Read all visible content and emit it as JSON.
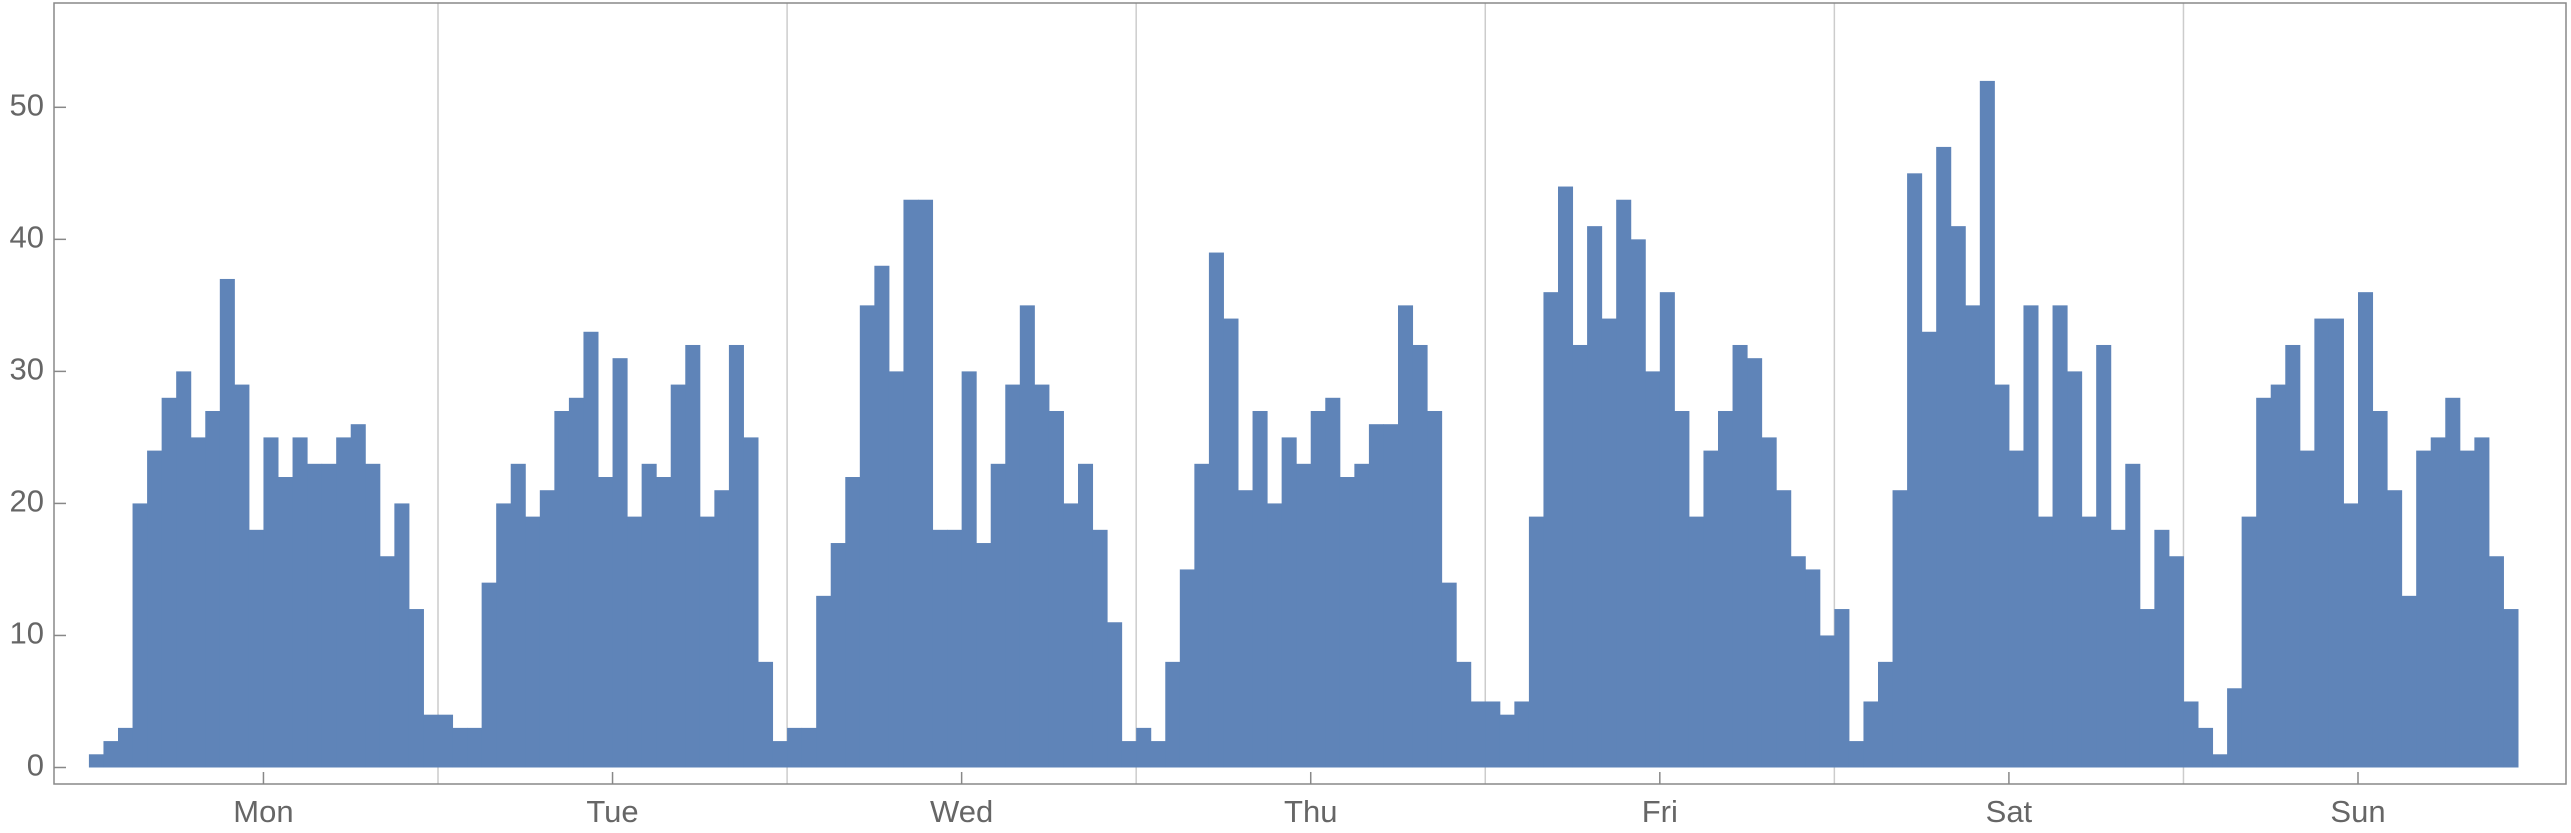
{
  "chart_data": {
    "type": "histogram",
    "bins": [
      0,
      1,
      2,
      3,
      4,
      5,
      6,
      7,
      8,
      9,
      10,
      11,
      12,
      13,
      14,
      15,
      16,
      17,
      18,
      19,
      20,
      21,
      22,
      23,
      24,
      25,
      26,
      27,
      28,
      29,
      30,
      31,
      32,
      33,
      34,
      35,
      36,
      37,
      38,
      39,
      40,
      41,
      42,
      43,
      44,
      45,
      46,
      47,
      48,
      49,
      50,
      51,
      52,
      53,
      54,
      55,
      56,
      57,
      58,
      59,
      60,
      61,
      62,
      63,
      64,
      65,
      66,
      67,
      68,
      69,
      70,
      71,
      72,
      73,
      74,
      75,
      76,
      77,
      78,
      79,
      80,
      81,
      82,
      83,
      84,
      85,
      86,
      87,
      88,
      89,
      90,
      91,
      92,
      93,
      94,
      95,
      96,
      97,
      98,
      99,
      100,
      101,
      102,
      103,
      104,
      105,
      106,
      107,
      108,
      109,
      110,
      111,
      112,
      113,
      114,
      115,
      116,
      117,
      118,
      119,
      120,
      121,
      122,
      123,
      124,
      125,
      126,
      127,
      128,
      129,
      130,
      131,
      132,
      133,
      134,
      135,
      136,
      137,
      138,
      139,
      140,
      141,
      142,
      143,
      144,
      145,
      146,
      147,
      148,
      149,
      150,
      151,
      152,
      153,
      154,
      155,
      156,
      157,
      158,
      159,
      160,
      161,
      162,
      163,
      164,
      165,
      166,
      167
    ],
    "counts": [
      1,
      2,
      3,
      20,
      24,
      28,
      30,
      25,
      27,
      37,
      29,
      18,
      25,
      22,
      25,
      23,
      23,
      25,
      26,
      23,
      16,
      20,
      12,
      4,
      4,
      3,
      3,
      14,
      20,
      23,
      19,
      21,
      27,
      28,
      33,
      22,
      31,
      19,
      23,
      22,
      29,
      32,
      19,
      21,
      32,
      25,
      8,
      2,
      3,
      3,
      13,
      17,
      22,
      35,
      38,
      30,
      43,
      43,
      18,
      18,
      30,
      17,
      23,
      29,
      35,
      29,
      27,
      20,
      23,
      18,
      11,
      2,
      3,
      2,
      8,
      15,
      23,
      39,
      34,
      21,
      27,
      20,
      25,
      23,
      27,
      28,
      22,
      23,
      26,
      26,
      35,
      32,
      27,
      14,
      8,
      5,
      5,
      4,
      5,
      19,
      36,
      44,
      32,
      41,
      34,
      43,
      40,
      30,
      36,
      27,
      19,
      24,
      27,
      32,
      31,
      25,
      21,
      16,
      15,
      10,
      12,
      2,
      5,
      8,
      21,
      45,
      33,
      47,
      41,
      35,
      52,
      29,
      24,
      35,
      19,
      35,
      30,
      19,
      32,
      18,
      23,
      12,
      18,
      16,
      5,
      3,
      1,
      6,
      19,
      28,
      29,
      32,
      24,
      34,
      34,
      20,
      36,
      27,
      21,
      13,
      24,
      25,
      28,
      24,
      25,
      16,
      12
    ],
    "color": "#5f84b8",
    "xlim": [
      -2.4,
      170.3
    ],
    "xticks": [
      {
        "value": 12,
        "label": "Mon"
      },
      {
        "value": 36,
        "label": "Tue"
      },
      {
        "value": 60,
        "label": "Wed"
      },
      {
        "value": 84,
        "label": "Thu"
      },
      {
        "value": 108,
        "label": "Fri"
      },
      {
        "value": 132,
        "label": "Sat"
      },
      {
        "value": 156,
        "label": "Sun"
      }
    ],
    "xgrid": [
      24,
      48,
      72,
      96,
      120,
      144
    ],
    "ylim": [
      -1.25,
      57.9
    ],
    "yticks": [
      0,
      10,
      20,
      30,
      40,
      50
    ]
  }
}
